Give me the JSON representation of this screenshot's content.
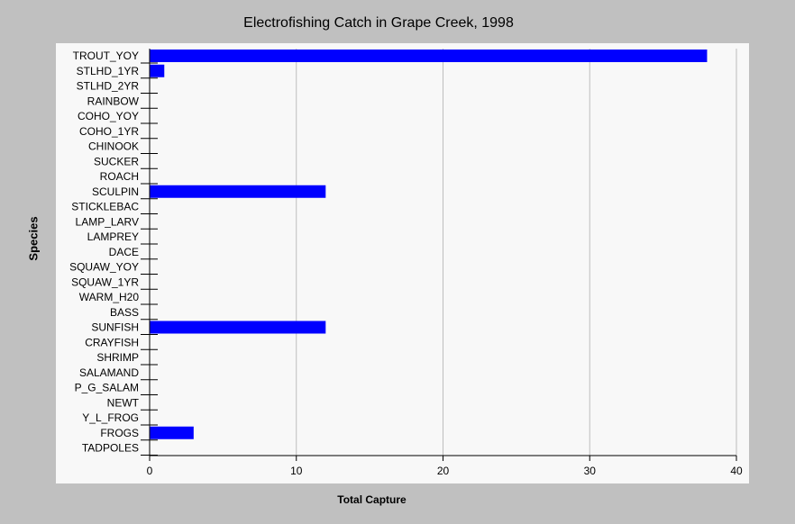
{
  "chart_data": {
    "type": "bar",
    "orientation": "horizontal",
    "title": "Electrofishing Catch in Grape Creek, 1998",
    "xlabel": "Total Capture",
    "ylabel": "Species",
    "xlim": [
      0,
      40
    ],
    "xticks": [
      0,
      10,
      20,
      30,
      40
    ],
    "grid": true,
    "categories": [
      "TROUT_YOY",
      "STLHD_1YR",
      "STLHD_2YR",
      "RAINBOW",
      "COHO_YOY",
      "COHO_1YR",
      "CHINOOK",
      "SUCKER",
      "ROACH",
      "SCULPIN",
      "STICKLEBAC",
      "LAMP_LARV",
      "LAMPREY",
      "DACE",
      "SQUAW_YOY",
      "SQUAW_1YR",
      "WARM_H20",
      "BASS",
      "SUNFISH",
      "CRAYFISH",
      "SHRIMP",
      "SALAMAND",
      "P_G_SALAM",
      "NEWT",
      "Y_L_FROG",
      "FROGS",
      "TADPOLES"
    ],
    "values": [
      38,
      1,
      0,
      0,
      0,
      0,
      0,
      0,
      0,
      12,
      0,
      0,
      0,
      0,
      0,
      0,
      0,
      0,
      12,
      0,
      0,
      0,
      0,
      0,
      0,
      3,
      0
    ],
    "bar_color": "#0000ff"
  }
}
